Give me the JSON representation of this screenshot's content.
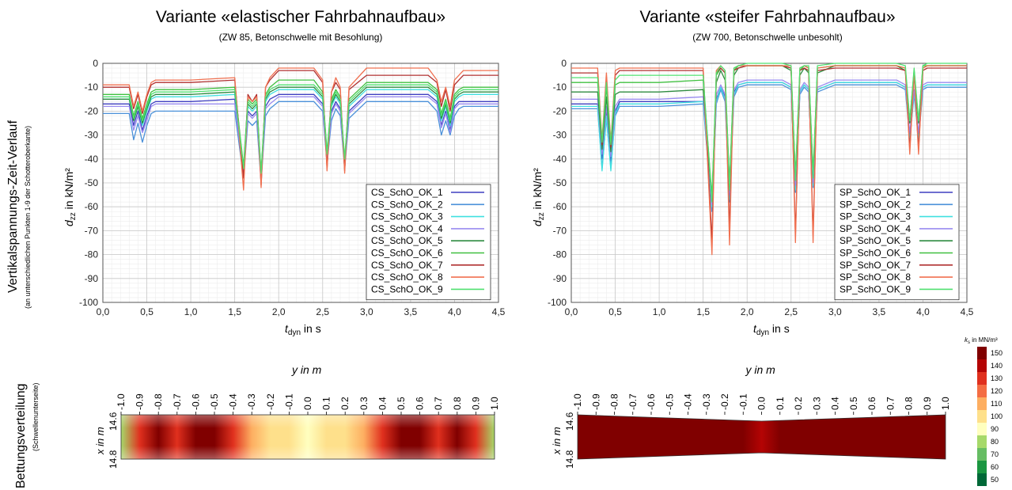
{
  "left_title": "Variante «elastischer Fahrbahnaufbau»",
  "left_subtitle": "(ZW 85, Betonschwelle mit Besohlung)",
  "right_title": "Variante «steifer Fahrbahnaufbau»",
  "right_subtitle": "(ZW 700, Betonschwelle unbesohlt)",
  "row_label_top": "Vertikalspannungs-Zeit-Verlauf",
  "row_label_top_sub": "(an unterschiedlichen Punkten 1-9 der Schotteroberkante)",
  "row_label_bottom": "Bettungsverteilung",
  "row_label_bottom_sub": "(Schwellenunterseite)",
  "colors": {
    "series": [
      "#3f3fc0",
      "#4a90d9",
      "#40e0e0",
      "#9a8cf0",
      "#2e8b40",
      "#40c040",
      "#b03030",
      "#f07050",
      "#50e070"
    ],
    "contour": [
      "#006837",
      "#1a9641",
      "#66bd63",
      "#a6d96a",
      "#ffffbf",
      "#fee08b",
      "#fdae61",
      "#f46d43",
      "#e0301e",
      "#b40404",
      "#800000"
    ]
  },
  "chart_data": [
    {
      "type": "line",
      "xlabel": "t_dyn in s",
      "ylabel": "d_zz in kN/m²",
      "xlim": [
        0,
        4.5
      ],
      "ylim": [
        -100,
        0
      ],
      "xticks": [
        "0,0",
        "0,5",
        "1,0",
        "1,5",
        "2,0",
        "2,5",
        "3,0",
        "3,5",
        "4,0",
        "4,5"
      ],
      "yticks": [
        "0",
        "-10",
        "-20",
        "-30",
        "-40",
        "-50",
        "-60",
        "-70",
        "-80",
        "-90",
        "-100"
      ],
      "grid": true,
      "legend_position": "bottom-right",
      "x": [
        0,
        0.3,
        0.35,
        0.4,
        0.45,
        0.5,
        0.55,
        0.6,
        1.0,
        1.5,
        1.6,
        1.65,
        1.7,
        1.75,
        1.8,
        1.85,
        1.9,
        2.0,
        2.4,
        2.5,
        2.55,
        2.6,
        2.65,
        2.7,
        2.75,
        2.8,
        3.0,
        3.7,
        3.8,
        3.85,
        3.9,
        3.95,
        4.0,
        4.05,
        4.1,
        4.5
      ],
      "series": [
        {
          "name": "CS_SchO_OK_1",
          "values": [
            -17,
            -17,
            -26,
            -20,
            -28,
            -22,
            -17,
            -16,
            -16,
            -15,
            -45,
            -20,
            -22,
            -20,
            -48,
            -18,
            -15,
            -13,
            -13,
            -17,
            -40,
            -20,
            -16,
            -19,
            -42,
            -20,
            -13,
            -13,
            -16,
            -26,
            -20,
            -28,
            -18,
            -16,
            -16,
            -16
          ]
        },
        {
          "name": "CS_SchO_OK_2",
          "values": [
            -21,
            -21,
            -32,
            -25,
            -33,
            -26,
            -21,
            -20,
            -20,
            -20,
            -48,
            -24,
            -26,
            -24,
            -50,
            -22,
            -19,
            -16,
            -16,
            -20,
            -42,
            -24,
            -19,
            -22,
            -44,
            -23,
            -16,
            -16,
            -20,
            -30,
            -24,
            -30,
            -22,
            -19,
            -18,
            -18
          ]
        },
        {
          "name": "CS_SchO_OK_3",
          "values": [
            -15,
            -15,
            -24,
            -18,
            -26,
            -20,
            -15,
            -14,
            -14,
            -13,
            -44,
            -18,
            -20,
            -18,
            -47,
            -16,
            -13,
            -11,
            -11,
            -15,
            -38,
            -18,
            -14,
            -17,
            -41,
            -18,
            -11,
            -11,
            -14,
            -24,
            -18,
            -26,
            -16,
            -14,
            -13,
            -13
          ]
        },
        {
          "name": "CS_SchO_OK_4",
          "values": [
            -18,
            -18,
            -28,
            -22,
            -29,
            -24,
            -18,
            -17,
            -17,
            -17,
            -46,
            -21,
            -23,
            -21,
            -49,
            -19,
            -17,
            -14,
            -14,
            -18,
            -41,
            -21,
            -17,
            -20,
            -43,
            -21,
            -14,
            -14,
            -17,
            -27,
            -21,
            -29,
            -19,
            -17,
            -17,
            -17
          ]
        },
        {
          "name": "CS_SchO_OK_5",
          "values": [
            -15,
            -15,
            -24,
            -18,
            -25,
            -19,
            -14,
            -13,
            -13,
            -12,
            -44,
            -17,
            -19,
            -17,
            -47,
            -15,
            -12,
            -10,
            -10,
            -14,
            -38,
            -17,
            -13,
            -16,
            -41,
            -17,
            -10,
            -10,
            -13,
            -23,
            -17,
            -25,
            -15,
            -13,
            -12,
            -12
          ]
        },
        {
          "name": "CS_SchO_OK_6",
          "values": [
            -13,
            -13,
            -22,
            -16,
            -23,
            -17,
            -12,
            -11,
            -11,
            -10,
            -43,
            -15,
            -17,
            -15,
            -46,
            -13,
            -10,
            -7,
            -7,
            -12,
            -37,
            -15,
            -11,
            -14,
            -40,
            -15,
            -8,
            -8,
            -11,
            -21,
            -15,
            -23,
            -13,
            -11,
            -10,
            -10
          ]
        },
        {
          "name": "CS_SchO_OK_7",
          "values": [
            -10,
            -10,
            -19,
            -13,
            -21,
            -14,
            -9,
            -8,
            -8,
            -7,
            -48,
            -13,
            -16,
            -13,
            -51,
            -10,
            -7,
            -3,
            -3,
            -8,
            -44,
            -12,
            -8,
            -11,
            -45,
            -11,
            -5,
            -5,
            -8,
            -18,
            -11,
            -20,
            -9,
            -7,
            -5,
            -5
          ]
        },
        {
          "name": "CS_SchO_OK_8",
          "values": [
            -9,
            -9,
            -18,
            -12,
            -20,
            -13,
            -8,
            -7,
            -7,
            -6,
            -53,
            -14,
            -16,
            -14,
            -52,
            -10,
            -6,
            -2,
            -2,
            -7,
            -45,
            -12,
            -6,
            -10,
            -46,
            -10,
            -2,
            -2,
            -7,
            -16,
            -10,
            -18,
            -7,
            -5,
            -3,
            -3
          ]
        },
        {
          "name": "CS_SchO_OK_9",
          "values": [
            -14,
            -14,
            -23,
            -17,
            -24,
            -18,
            -13,
            -12,
            -12,
            -11,
            -44,
            -16,
            -18,
            -16,
            -46,
            -14,
            -11,
            -9,
            -9,
            -13,
            -38,
            -16,
            -12,
            -15,
            -40,
            -16,
            -9,
            -9,
            -12,
            -22,
            -16,
            -24,
            -14,
            -12,
            -11,
            -11
          ]
        }
      ]
    },
    {
      "type": "line",
      "xlabel": "t_dyn in s",
      "ylabel": "d_zz in kN/m²",
      "xlim": [
        0,
        4.5
      ],
      "ylim": [
        -100,
        0
      ],
      "xticks": [
        "0,0",
        "0,5",
        "1,0",
        "1,5",
        "2,0",
        "2,5",
        "3,0",
        "3,5",
        "4,0",
        "4,5"
      ],
      "yticks": [
        "0",
        "-10",
        "-20",
        "-30",
        "-40",
        "-50",
        "-60",
        "-70",
        "-80",
        "-90",
        "-100"
      ],
      "grid": true,
      "legend_position": "bottom-right",
      "x": [
        0,
        0.3,
        0.35,
        0.4,
        0.45,
        0.5,
        0.55,
        0.6,
        1.0,
        1.5,
        1.6,
        1.65,
        1.7,
        1.75,
        1.8,
        1.85,
        1.9,
        2.0,
        2.4,
        2.5,
        2.55,
        2.6,
        2.65,
        2.7,
        2.75,
        2.8,
        3.0,
        3.7,
        3.8,
        3.85,
        3.9,
        3.95,
        4.0,
        4.05,
        4.1,
        4.5
      ],
      "series": [
        {
          "name": "SP_SchO_OK_1",
          "values": [
            -17,
            -17,
            -40,
            -20,
            -41,
            -20,
            -16,
            -16,
            -16,
            -16,
            -60,
            -15,
            -10,
            -14,
            -55,
            -12,
            -9,
            -8,
            -8,
            -10,
            -52,
            -12,
            -9,
            -11,
            -50,
            -11,
            -8,
            -8,
            -10,
            -30,
            -12,
            -30,
            -10,
            -9,
            -9,
            -9
          ]
        },
        {
          "name": "SP_SchO_OK_2",
          "values": [
            -19,
            -19,
            -44,
            -23,
            -44,
            -22,
            -18,
            -18,
            -18,
            -17,
            -62,
            -17,
            -11,
            -16,
            -58,
            -14,
            -10,
            -9,
            -9,
            -11,
            -54,
            -13,
            -10,
            -12,
            -52,
            -12,
            -9,
            -9,
            -11,
            -32,
            -13,
            -32,
            -11,
            -10,
            -10,
            -10
          ]
        },
        {
          "name": "SP_SchO_OK_3",
          "values": [
            -18,
            -18,
            -45,
            -22,
            -45,
            -21,
            -17,
            -17,
            -17,
            -16,
            -60,
            -16,
            -10,
            -15,
            -57,
            -13,
            -9,
            -8,
            -8,
            -10,
            -53,
            -12,
            -9,
            -11,
            -51,
            -11,
            -8,
            -8,
            -10,
            -31,
            -12,
            -31,
            -10,
            -9,
            -9,
            -9
          ]
        },
        {
          "name": "SP_SchO_OK_4",
          "values": [
            -15,
            -15,
            -38,
            -18,
            -39,
            -18,
            -15,
            -15,
            -15,
            -14,
            -59,
            -13,
            -9,
            -13,
            -55,
            -11,
            -8,
            -7,
            -7,
            -9,
            -51,
            -11,
            -8,
            -10,
            -50,
            -10,
            -7,
            -7,
            -9,
            -29,
            -11,
            -29,
            -9,
            -8,
            -8,
            -8
          ]
        },
        {
          "name": "SP_SchO_OK_5",
          "values": [
            -12,
            -12,
            -36,
            -14,
            -37,
            -13,
            -12,
            -12,
            -12,
            -11,
            -57,
            -8,
            -3,
            -7,
            -52,
            -5,
            -2,
            -1,
            -1,
            -3,
            -48,
            -5,
            -2,
            -4,
            -47,
            -4,
            -1,
            -1,
            -3,
            -25,
            -5,
            -25,
            -2,
            -1,
            -1,
            -1
          ]
        },
        {
          "name": "SP_SchO_OK_6",
          "values": [
            -8,
            -8,
            -32,
            -10,
            -33,
            -9,
            -8,
            -8,
            -8,
            -7,
            -56,
            -5,
            -2,
            -4,
            -51,
            -3,
            -1,
            -1,
            -1,
            -2,
            -47,
            -3,
            -1,
            -2,
            -46,
            -2,
            -1,
            -1,
            -2,
            -24,
            -3,
            -24,
            -1,
            -1,
            -1,
            -1
          ]
        },
        {
          "name": "SP_SchO_OK_7",
          "values": [
            -4,
            -4,
            -34,
            -6,
            -35,
            -5,
            -3,
            -3,
            -3,
            -3,
            -74,
            -4,
            -2,
            -4,
            -70,
            -3,
            -2,
            -1,
            -1,
            -2,
            -72,
            -3,
            -2,
            -3,
            -72,
            -3,
            -2,
            -2,
            -3,
            -36,
            -4,
            -36,
            -3,
            -2,
            -2,
            -2
          ]
        },
        {
          "name": "SP_SchO_OK_8",
          "values": [
            -2,
            -2,
            -32,
            -4,
            -33,
            -3,
            -2,
            -2,
            -2,
            -2,
            -80,
            -3,
            -1,
            -3,
            -76,
            -2,
            -1,
            -1,
            -1,
            -1,
            -75,
            -2,
            -1,
            -2,
            -75,
            -2,
            -1,
            -1,
            -2,
            -38,
            -3,
            -38,
            -2,
            -1,
            -1,
            -1
          ]
        },
        {
          "name": "SP_SchO_OK_9",
          "values": [
            -6,
            -6,
            -33,
            -8,
            -34,
            -7,
            -5,
            -5,
            -5,
            -5,
            -58,
            -4,
            -1,
            -3,
            -53,
            -2,
            -1,
            0,
            0,
            -1,
            -49,
            -2,
            -1,
            -1,
            -48,
            -1,
            0,
            0,
            -1,
            -24,
            -2,
            -24,
            -1,
            0,
            0,
            0
          ]
        }
      ]
    },
    {
      "type": "heatmap",
      "xlabel": "y in m",
      "ylabel": "x in m",
      "xticks": [
        "-1.0",
        "-0.9",
        "-0.8",
        "-0.7",
        "-0.6",
        "-0.5",
        "-0.4",
        "-0.3",
        "-0.2",
        "-0.1",
        "0.0",
        "0.1",
        "0.2",
        "0.3",
        "0.4",
        "0.5",
        "0.6",
        "0.7",
        "0.8",
        "0.9",
        "1.0"
      ],
      "yticks": [
        "14.6",
        "14.8"
      ],
      "profile_y": [
        -1.0,
        -0.9,
        -0.8,
        -0.7,
        -0.6,
        -0.5,
        -0.4,
        -0.3,
        -0.2,
        -0.1,
        0.0,
        0.1,
        0.2,
        0.3,
        0.4,
        0.5,
        0.6,
        0.7,
        0.8,
        0.9,
        1.0
      ],
      "profile_ks": [
        75,
        130,
        145,
        125,
        155,
        155,
        130,
        110,
        100,
        95,
        90,
        95,
        100,
        110,
        130,
        155,
        155,
        125,
        145,
        130,
        75
      ]
    },
    {
      "type": "heatmap",
      "xlabel": "y in m",
      "ylabel": "x in m",
      "xticks": [
        "-1.0",
        "-0.9",
        "-0.8",
        "-0.7",
        "-0.6",
        "-0.5",
        "-0.4",
        "-0.3",
        "-0.2",
        "-0.1",
        "0.0",
        "0.1",
        "0.2",
        "0.3",
        "0.4",
        "0.5",
        "0.6",
        "0.7",
        "0.8",
        "0.9",
        "1.0"
      ],
      "yticks": [
        "14.6",
        "14.8"
      ],
      "profile_y": [
        -1.0,
        -0.9,
        -0.8,
        -0.7,
        -0.6,
        -0.5,
        -0.4,
        -0.3,
        -0.2,
        -0.1,
        0.0,
        0.1,
        0.2,
        0.3,
        0.4,
        0.5,
        0.6,
        0.7,
        0.8,
        0.9,
        1.0
      ],
      "profile_ks": [
        150,
        155,
        155,
        155,
        155,
        155,
        155,
        150,
        148,
        145,
        140,
        145,
        148,
        150,
        155,
        155,
        155,
        155,
        155,
        155,
        150
      ]
    }
  ],
  "colorbar": {
    "label": "k_s in MN/m³",
    "ticks": [
      "150",
      "140",
      "130",
      "120",
      "110",
      "100",
      "90",
      "80",
      "70",
      "60",
      "50"
    ]
  }
}
